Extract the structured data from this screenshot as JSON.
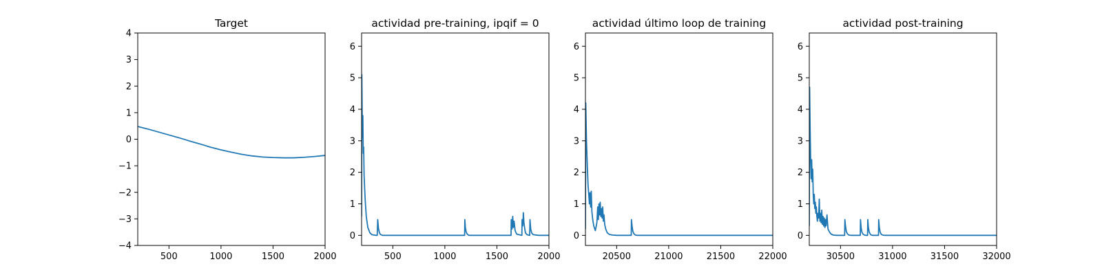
{
  "figure": {
    "background": "#ffffff",
    "line_color": "#1f77b4",
    "axis_color": "#000000"
  },
  "chart_data": [
    {
      "type": "line",
      "title": "Target",
      "xlabel": "",
      "ylabel": "",
      "xlim": [
        200,
        2000
      ],
      "ylim": [
        -4,
        4
      ],
      "xticks": [
        500,
        1000,
        1500,
        2000
      ],
      "yticks": [
        -4,
        -3,
        -2,
        -1,
        0,
        1,
        2,
        3,
        4
      ],
      "grid": false,
      "series": [
        {
          "x": [
            200,
            300,
            400,
            500,
            600,
            700,
            800,
            900,
            1000,
            1100,
            1200,
            1300,
            1400,
            1500,
            1600,
            1700,
            1800,
            1900,
            2000
          ],
          "y": [
            0.48,
            0.38,
            0.27,
            0.16,
            0.05,
            -0.07,
            -0.18,
            -0.3,
            -0.4,
            -0.49,
            -0.57,
            -0.63,
            -0.67,
            -0.69,
            -0.7,
            -0.7,
            -0.68,
            -0.65,
            -0.61
          ]
        }
      ]
    },
    {
      "type": "line",
      "title": "actividad pre-training, ipqif = 0",
      "xlabel": "",
      "ylabel": "",
      "xlim": [
        200,
        2000
      ],
      "ylim": [
        -0.32,
        6.42
      ],
      "xticks": [
        500,
        1000,
        1500,
        2000
      ],
      "yticks": [
        0,
        1,
        2,
        3,
        4,
        5,
        6
      ],
      "grid": false,
      "series": [
        {
          "x": [
            200,
            202,
            205,
            208,
            212,
            216,
            220,
            224,
            228,
            235,
            245,
            260,
            280,
            300,
            320,
            340,
            350,
            355,
            362,
            370,
            380,
            400,
            600,
            800,
            1000,
            1190,
            1192,
            1197,
            1205,
            1215,
            1230,
            1400,
            1636,
            1638,
            1645,
            1652,
            1658,
            1665,
            1675,
            1690,
            1740,
            1742,
            1748,
            1752,
            1754,
            1760,
            1768,
            1775,
            1790,
            1815,
            1818,
            1825,
            1835,
            1850,
            1900,
            2000
          ],
          "y": [
            0.6,
            5.1,
            4.0,
            3.1,
            3.8,
            2.6,
            2.8,
            1.9,
            1.6,
            1.1,
            0.6,
            0.25,
            0.08,
            0.02,
            0.01,
            0.0,
            0.0,
            0.5,
            0.22,
            0.1,
            0.03,
            0.0,
            0.0,
            0.0,
            0.0,
            0.0,
            0.5,
            0.25,
            0.1,
            0.04,
            0.0,
            0.0,
            0.0,
            0.5,
            0.2,
            0.6,
            0.25,
            0.45,
            0.15,
            0.04,
            0.0,
            0.5,
            0.3,
            0.5,
            0.72,
            0.4,
            0.2,
            0.08,
            0.02,
            0.0,
            0.5,
            0.2,
            0.07,
            0.02,
            0.0,
            0.0
          ]
        }
      ]
    },
    {
      "type": "line",
      "title": "actividad último loop de training",
      "xlabel": "",
      "ylabel": "",
      "xlim": [
        20200,
        22000
      ],
      "ylim": [
        -0.32,
        6.42
      ],
      "xticks": [
        20500,
        21000,
        21500,
        22000
      ],
      "yticks": [
        0,
        1,
        2,
        3,
        4,
        5,
        6
      ],
      "grid": false,
      "series": [
        {
          "x": [
            20200,
            20203,
            20210,
            20218,
            20225,
            20232,
            20238,
            20243,
            20250,
            20256,
            20262,
            20270,
            20280,
            20295,
            20310,
            20318,
            20324,
            20330,
            20336,
            20342,
            20348,
            20354,
            20360,
            20366,
            20372,
            20378,
            20385,
            20395,
            20410,
            20430,
            20460,
            20500,
            20600,
            20640,
            20642,
            20648,
            20656,
            20666,
            20680,
            20700,
            21000,
            21500,
            22000
          ],
          "y": [
            0.2,
            4.2,
            3.0,
            2.2,
            1.6,
            1.3,
            1.0,
            1.35,
            0.9,
            1.4,
            0.75,
            0.5,
            0.3,
            0.15,
            0.4,
            0.9,
            0.5,
            1.0,
            0.65,
            1.05,
            0.6,
            0.85,
            0.55,
            0.9,
            0.45,
            0.65,
            0.35,
            0.2,
            0.08,
            0.03,
            0.01,
            0.0,
            0.0,
            0.0,
            0.5,
            0.3,
            0.12,
            0.05,
            0.01,
            0.0,
            0.0,
            0.0,
            0.0
          ]
        }
      ]
    },
    {
      "type": "line",
      "title": "actividad post-training",
      "xlabel": "",
      "ylabel": "",
      "xlim": [
        30200,
        32000
      ],
      "ylim": [
        -0.32,
        6.42
      ],
      "xticks": [
        30500,
        31000,
        31500,
        32000
      ],
      "yticks": [
        0,
        1,
        2,
        3,
        4,
        5,
        6
      ],
      "grid": false,
      "series": [
        {
          "x": [
            30200,
            30203,
            30208,
            30213,
            30218,
            30223,
            30228,
            30233,
            30238,
            30243,
            30248,
            30253,
            30258,
            30263,
            30268,
            30273,
            30278,
            30283,
            30290,
            30296,
            30302,
            30308,
            30314,
            30320,
            30326,
            30332,
            30338,
            30344,
            30350,
            30356,
            30362,
            30370,
            30380,
            30395,
            30410,
            30430,
            30460,
            30500,
            30540,
            30542,
            30548,
            30556,
            30566,
            30580,
            30600,
            30690,
            30692,
            30698,
            30706,
            30716,
            30730,
            30745,
            30760,
            30762,
            30768,
            30776,
            30790,
            30805,
            30865,
            30867,
            30873,
            30881,
            30892,
            30905,
            30925,
            31000,
            31500,
            32000
          ],
          "y": [
            0.3,
            4.7,
            3.4,
            2.4,
            1.8,
            2.4,
            1.7,
            2.1,
            1.3,
            1.0,
            1.3,
            0.85,
            1.05,
            0.7,
            0.9,
            0.6,
            0.45,
            0.7,
            0.55,
            1.15,
            0.45,
            0.7,
            0.4,
            0.8,
            0.35,
            0.6,
            0.3,
            0.55,
            0.25,
            0.5,
            0.3,
            0.65,
            0.2,
            0.1,
            0.04,
            0.01,
            0.0,
            0.0,
            0.0,
            0.5,
            0.3,
            0.12,
            0.05,
            0.01,
            0.0,
            0.0,
            0.5,
            0.25,
            0.1,
            0.04,
            0.01,
            0.0,
            0.0,
            0.5,
            0.25,
            0.1,
            0.02,
            0.0,
            0.0,
            0.5,
            0.25,
            0.1,
            0.03,
            0.01,
            0.0,
            0.0,
            0.0,
            0.0
          ]
        }
      ]
    }
  ]
}
